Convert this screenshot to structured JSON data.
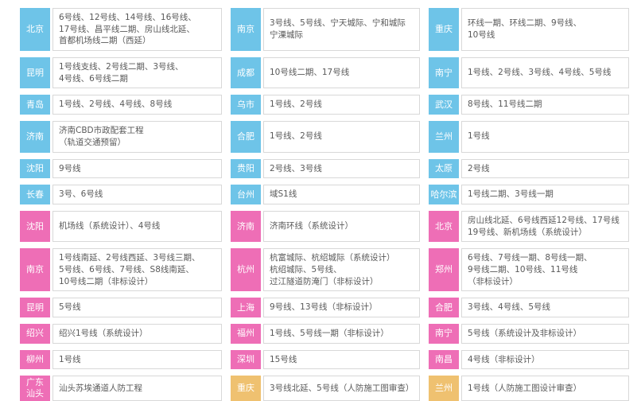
{
  "palette": {
    "badge_blue": "#6EC4E8",
    "badge_pink": "#EE6EB6",
    "badge_yellow": "#EFC170",
    "box_border": "#d8d8d8",
    "text": "#595959",
    "badge_text": "#ffffff"
  },
  "legend_meaning": {
    "blue": "city-group-1",
    "pink": "city-group-2",
    "yellow": "city-group-3"
  },
  "grid": {
    "columns": [
      {
        "cells": [
          {
            "city": "北京",
            "color": "blue",
            "text": "6号线、12号线、14号线、16号线、\n17号线、昌平线二期、房山线北延、\n首都机场线二期（西延）"
          },
          {
            "city": "昆明",
            "color": "blue",
            "text": "1号线支线、2号线二期、3号线、\n4号线、6号线二期"
          },
          {
            "city": "青岛",
            "color": "blue",
            "text": "1号线、2号线、4号线、8号线"
          },
          {
            "city": "济南",
            "color": "blue",
            "text": "济南CBD市政配套工程\n（轨道交通预留）"
          },
          {
            "city": "沈阳",
            "color": "blue",
            "text": "9号线"
          },
          {
            "city": "长春",
            "color": "blue",
            "text": "3号、6号线"
          },
          {
            "city": "沈阳",
            "color": "pink",
            "text": "机场线（系统设计）、4号线"
          },
          {
            "city": "南京",
            "color": "pink",
            "text": "1号线南延、2号线西延、3号线三期、\n5号线、6号线、7号线、S8线南延、\n10号线二期（非标设计）"
          },
          {
            "city": "昆明",
            "color": "pink",
            "text": "5号线"
          },
          {
            "city": "绍兴",
            "color": "pink",
            "text": "绍兴1号线（系统设计）"
          },
          {
            "city": "柳州",
            "color": "pink",
            "text": "1号线"
          },
          {
            "city": "广东\n汕头",
            "color": "pink",
            "text": "汕头苏埃通道人防工程"
          }
        ]
      },
      {
        "cells": [
          {
            "city": "南京",
            "color": "blue",
            "text": "3号线、5号线、宁天城际、宁和城际\n宁溧城际"
          },
          {
            "city": "成都",
            "color": "blue",
            "text": "10号线二期、17号线"
          },
          {
            "city": "乌市",
            "color": "blue",
            "text": "1号线、2号线"
          },
          {
            "city": "合肥",
            "color": "blue",
            "text": "1号线、2号线"
          },
          {
            "city": "贵阳",
            "color": "blue",
            "text": "2号线、3号线"
          },
          {
            "city": "台州",
            "color": "blue",
            "text": "域S1线"
          },
          {
            "city": "济南",
            "color": "pink",
            "text": "济南环线（系统设计）"
          },
          {
            "city": "杭州",
            "color": "pink",
            "text": "杭富城际、杭绍城际（系统设计）\n杭绍城际、5号线、\n过江隧道防淹门（非标设计）"
          },
          {
            "city": "上海",
            "color": "pink",
            "text": "9号线、13号线（非标设计）"
          },
          {
            "city": "福州",
            "color": "pink",
            "text": "1号线、5号线一期（非标设计）"
          },
          {
            "city": "深圳",
            "color": "pink",
            "text": "15号线"
          },
          {
            "city": "重庆",
            "color": "yellow",
            "text": "3号线北延、5号线（人防施工图审查）"
          }
        ]
      },
      {
        "cells": [
          {
            "city": "重庆",
            "color": "blue",
            "text": "环线一期、环线二期、9号线、\n10号线"
          },
          {
            "city": "南宁",
            "color": "blue",
            "text": "1号线、2号线、3号线、4号线、5号线"
          },
          {
            "city": "武汉",
            "color": "blue",
            "text": "8号线、11号线二期"
          },
          {
            "city": "兰州",
            "color": "blue",
            "text": "1号线"
          },
          {
            "city": "太原",
            "color": "blue",
            "text": "2号线"
          },
          {
            "city": "哈尔滨",
            "color": "blue",
            "text": "1号线二期、3号线一期"
          },
          {
            "city": "北京",
            "color": "pink",
            "text": "房山线北延、6号线西延12号线、17号线\n19号线、新机场线（系统设计）"
          },
          {
            "city": "郑州",
            "color": "pink",
            "text": "6号线、7号线一期、8号线一期、\n9号线二期、10号线、11号线\n（非标设计）"
          },
          {
            "city": "合肥",
            "color": "pink",
            "text": "3号线、4号线、5号线"
          },
          {
            "city": "南宁",
            "color": "pink",
            "text": "5号线（系统设计及非标设计）"
          },
          {
            "city": "南昌",
            "color": "pink",
            "text": "4号线（非标设计）"
          },
          {
            "city": "兰州",
            "color": "yellow",
            "text": "1号线（人防施工图设计审查）"
          }
        ]
      }
    ]
  }
}
